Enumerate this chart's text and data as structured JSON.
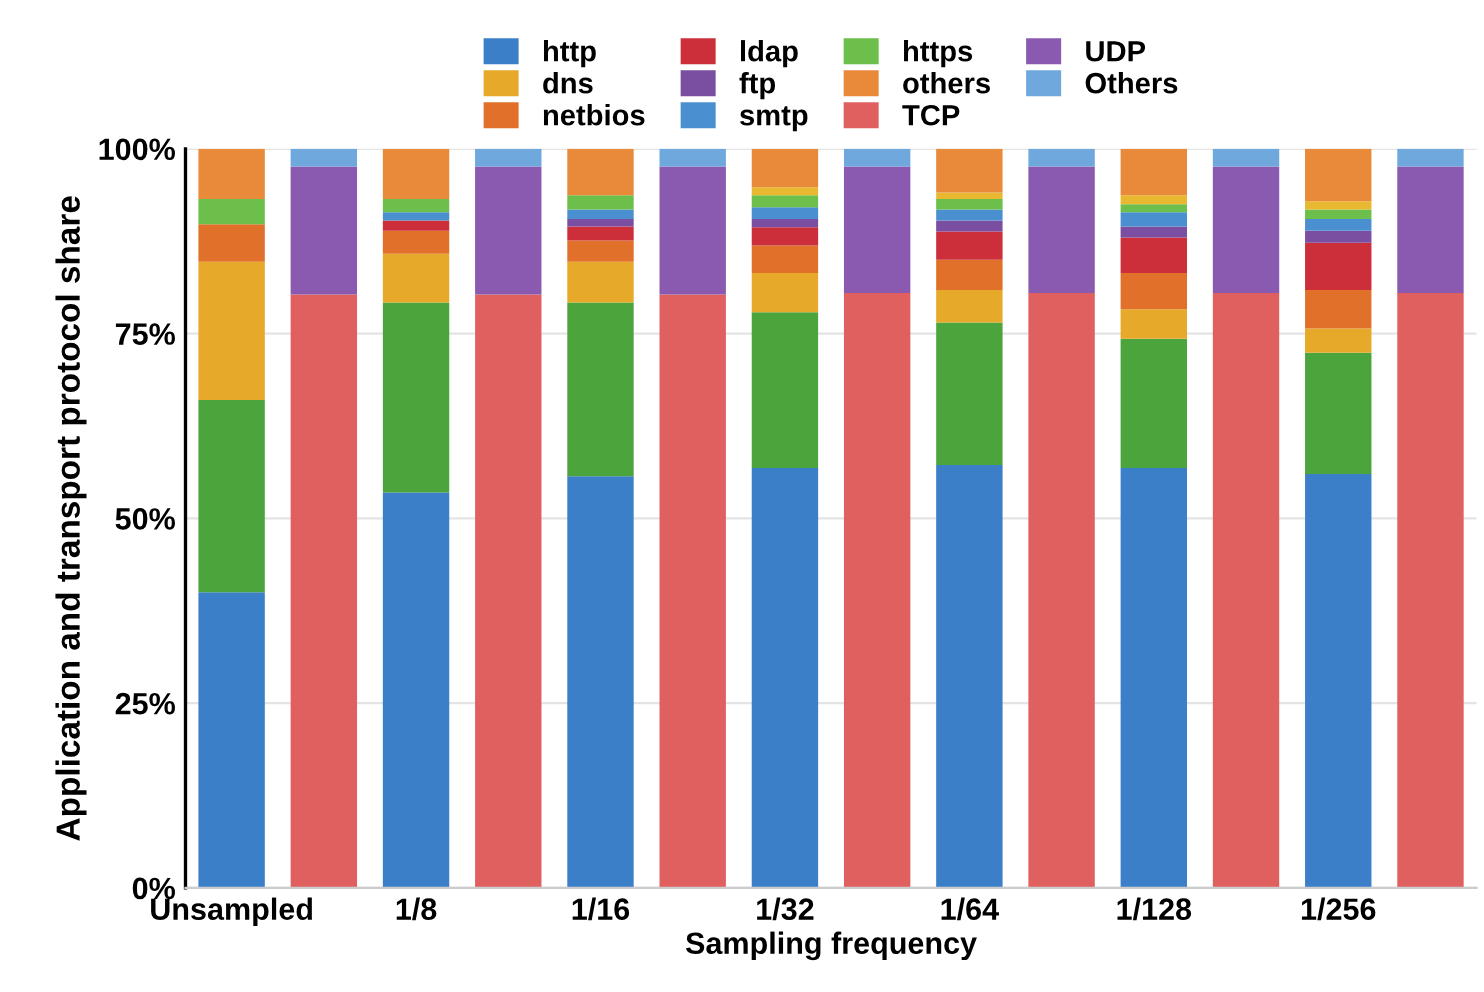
{
  "chart_data": {
    "type": "bar",
    "stacked": true,
    "xlabel": "Sampling frequency",
    "ylabel": "Application and transport protocol share",
    "categories": [
      "Unsampled",
      null,
      "1/8",
      null,
      "1/16",
      null,
      "1/32",
      null,
      "1/64",
      null,
      "1/128",
      null,
      "1/256",
      null
    ],
    "series": [
      {
        "name": "http",
        "color": "#3b7fc8",
        "values": [
          40.0,
          null,
          53.5,
          null,
          55.7,
          null,
          56.8,
          null,
          57.2,
          null,
          56.8,
          null,
          56.0,
          null
        ]
      },
      {
        "color": "#4ca53c",
        "values": [
          26.0,
          null,
          25.7,
          null,
          23.5,
          null,
          21.1,
          null,
          19.3,
          null,
          17.5,
          null,
          16.4,
          null
        ]
      },
      {
        "name": "dns",
        "color": "#e6a92a",
        "values": [
          18.7,
          null,
          6.6,
          null,
          5.5,
          null,
          5.3,
          null,
          4.4,
          null,
          4.0,
          null,
          3.3,
          null
        ]
      },
      {
        "name": "netbios",
        "color": "#e0702a",
        "values": [
          5.1,
          null,
          3.1,
          null,
          2.9,
          null,
          3.7,
          null,
          4.1,
          null,
          4.9,
          null,
          5.2,
          null
        ]
      },
      {
        "name": "ldap",
        "color": "#cc2f3a",
        "values": [
          0,
          null,
          1.4,
          null,
          1.9,
          null,
          2.5,
          null,
          3.8,
          null,
          4.8,
          null,
          6.4,
          null
        ]
      },
      {
        "name": "ftp",
        "color": "#7a4ea0",
        "values": [
          0,
          null,
          0,
          null,
          1.0,
          null,
          1.1,
          null,
          1.5,
          null,
          1.5,
          null,
          1.6,
          null
        ]
      },
      {
        "name": "smtp",
        "color": "#4a90d0",
        "values": [
          0,
          null,
          1.1,
          null,
          1.3,
          null,
          1.6,
          null,
          1.5,
          null,
          1.9,
          null,
          1.6,
          null
        ]
      },
      {
        "name": "https",
        "color": "#6cbf4a",
        "values": [
          3.4,
          null,
          1.8,
          null,
          1.9,
          null,
          1.6,
          null,
          1.4,
          null,
          1.1,
          null,
          1.3,
          null
        ]
      },
      {
        "color": "#e8b830",
        "values": [
          0,
          null,
          0,
          null,
          0,
          null,
          1.1,
          null,
          0.9,
          null,
          1.2,
          null,
          1.1,
          null
        ]
      },
      {
        "name": "others",
        "color": "#e88a3a",
        "values": [
          6.8,
          null,
          6.8,
          null,
          6.3,
          null,
          5.2,
          null,
          5.9,
          null,
          6.3,
          null,
          7.1,
          null
        ]
      },
      {
        "name": "TCP",
        "color": "#e06060",
        "values": [
          null,
          80.3,
          null,
          80.3,
          null,
          80.3,
          null,
          80.5,
          null,
          80.5,
          null,
          80.5,
          null,
          80.5
        ]
      },
      {
        "name": "UDP",
        "color": "#8a5ab0",
        "values": [
          null,
          17.3,
          null,
          17.3,
          null,
          17.3,
          null,
          17.1,
          null,
          17.1,
          null,
          17.1,
          null,
          17.1
        ]
      },
      {
        "name": "Others",
        "color": "#6fa8dc",
        "values": [
          null,
          2.4,
          null,
          2.4,
          null,
          2.4,
          null,
          2.4,
          null,
          2.4,
          null,
          2.4,
          null,
          2.4
        ]
      }
    ],
    "ylim": [
      0,
      100
    ],
    "yticks": [
      {
        "value": 0,
        "label": "0%"
      },
      {
        "value": 25,
        "label": "25%"
      },
      {
        "value": 50,
        "label": "50%"
      },
      {
        "value": 75,
        "label": "75%"
      },
      {
        "value": 100,
        "label": "100%"
      }
    ],
    "grid": "y",
    "legend": "top"
  }
}
